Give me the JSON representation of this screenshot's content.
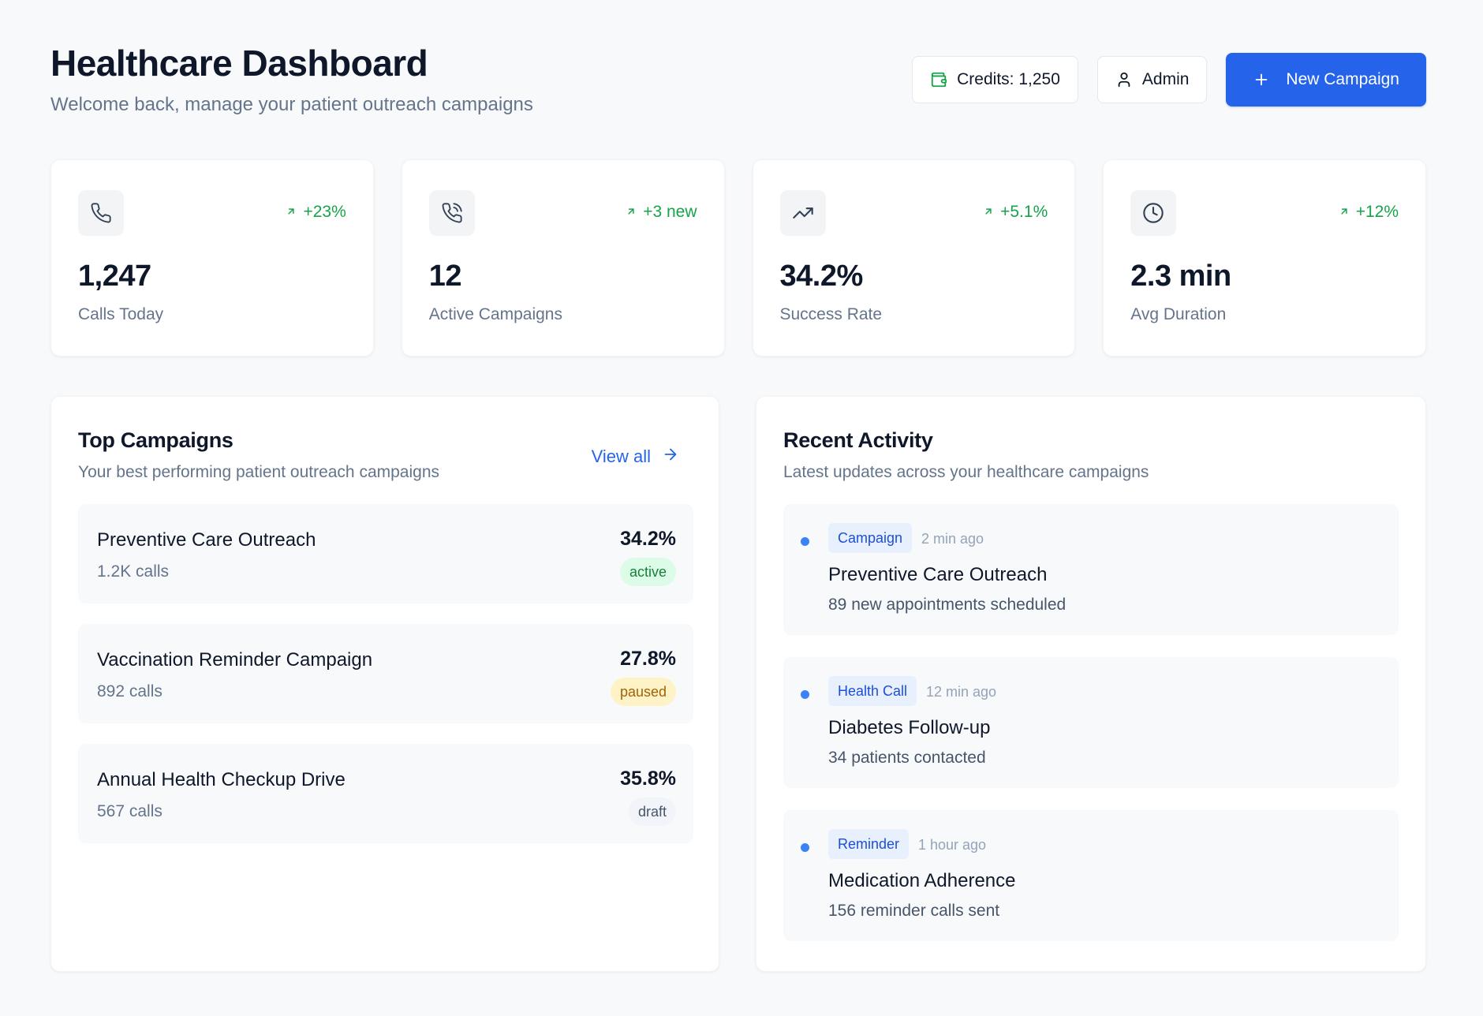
{
  "header": {
    "title": "Healthcare Dashboard",
    "subtitle": "Welcome back, manage your patient outreach campaigns",
    "credits_label": "Credits: 1,250",
    "admin_label": "Admin",
    "new_campaign_label": "New Campaign"
  },
  "colors": {
    "primary": "#2563eb",
    "positive": "#16a34a",
    "active_bg": "#dcfce7",
    "paused_bg": "#fef3c7",
    "draft_bg": "#f1f5f9",
    "tag_bg": "#e8f0fe"
  },
  "stats": [
    {
      "icon": "phone-icon",
      "delta": "+23%",
      "value": "1,247",
      "label": "Calls Today"
    },
    {
      "icon": "phone-call-icon",
      "delta": "+3 new",
      "value": "12",
      "label": "Active Campaigns"
    },
    {
      "icon": "trending-up-icon",
      "delta": "+5.1%",
      "value": "34.2%",
      "label": "Success Rate"
    },
    {
      "icon": "clock-icon",
      "delta": "+12%",
      "value": "2.3 min",
      "label": "Avg Duration"
    }
  ],
  "top_campaigns": {
    "title": "Top Campaigns",
    "subtitle": "Your best performing patient outreach campaigns",
    "view_all_label": "View all",
    "items": [
      {
        "name": "Preventive Care Outreach",
        "calls": "1.2K calls",
        "rate": "34.2%",
        "status": "active"
      },
      {
        "name": "Vaccination Reminder Campaign",
        "calls": "892 calls",
        "rate": "27.8%",
        "status": "paused"
      },
      {
        "name": "Annual Health Checkup Drive",
        "calls": "567 calls",
        "rate": "35.8%",
        "status": "draft"
      }
    ]
  },
  "recent_activity": {
    "title": "Recent Activity",
    "subtitle": "Latest updates across your healthcare campaigns",
    "items": [
      {
        "tag": "Campaign",
        "time": "2 min ago",
        "title": "Preventive Care Outreach",
        "detail": "89 new appointments scheduled"
      },
      {
        "tag": "Health Call",
        "time": "12 min ago",
        "title": "Diabetes Follow-up",
        "detail": "34 patients contacted"
      },
      {
        "tag": "Reminder",
        "time": "1 hour ago",
        "title": "Medication Adherence",
        "detail": "156 reminder calls sent"
      }
    ]
  }
}
